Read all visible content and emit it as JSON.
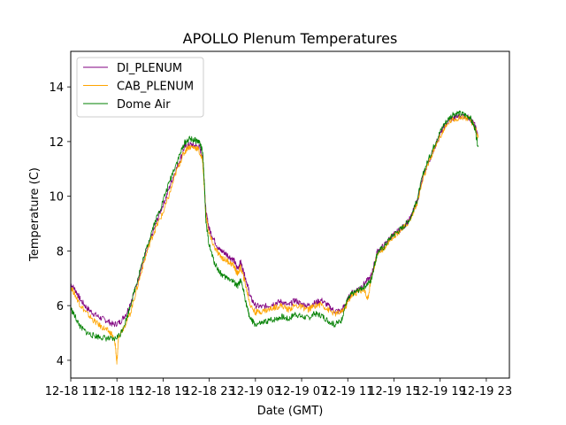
{
  "chart_data": {
    "type": "line",
    "title": "APOLLO Plenum Temperatures",
    "xlabel": "Date (GMT)",
    "ylabel": "Temperature (C)",
    "xlim": [
      10.0,
      23.3
    ],
    "ylim": [
      3.35,
      15.3
    ],
    "x_ticks": [
      {
        "value": 10.0,
        "label": "12-18 11"
      },
      {
        "value": 11.4,
        "label": "12-18 15"
      },
      {
        "value": 12.8,
        "label": "12-18 19"
      },
      {
        "value": 14.2,
        "label": "12-18 23"
      },
      {
        "value": 15.6,
        "label": "12-19 03"
      },
      {
        "value": 17.0,
        "label": "12-19 07"
      },
      {
        "value": 18.4,
        "label": "12-19 11"
      },
      {
        "value": 19.8,
        "label": "12-19 15"
      },
      {
        "value": 21.2,
        "label": "12-19 19"
      },
      {
        "value": 22.6,
        "label": "12-19 23"
      }
    ],
    "y_ticks": [
      4,
      6,
      8,
      10,
      12,
      14
    ],
    "legend_position": "upper-left",
    "series": [
      {
        "name": "DI_PLENUM",
        "color": "#800080",
        "points": [
          [
            10.0,
            6.8
          ],
          [
            10.15,
            6.55
          ],
          [
            10.3,
            6.2
          ],
          [
            10.5,
            5.9
          ],
          [
            10.7,
            5.7
          ],
          [
            10.9,
            5.55
          ],
          [
            11.1,
            5.45
          ],
          [
            11.3,
            5.3
          ],
          [
            11.5,
            5.4
          ],
          [
            11.7,
            5.75
          ],
          [
            11.9,
            6.4
          ],
          [
            12.1,
            7.2
          ],
          [
            12.3,
            8.0
          ],
          [
            12.5,
            8.7
          ],
          [
            12.7,
            9.4
          ],
          [
            12.9,
            10.0
          ],
          [
            13.1,
            10.7
          ],
          [
            13.3,
            11.3
          ],
          [
            13.45,
            11.8
          ],
          [
            13.6,
            11.9
          ],
          [
            13.75,
            11.85
          ],
          [
            13.9,
            11.8
          ],
          [
            14.0,
            11.4
          ],
          [
            14.05,
            10.5
          ],
          [
            14.1,
            9.4
          ],
          [
            14.2,
            8.8
          ],
          [
            14.35,
            8.4
          ],
          [
            14.5,
            8.05
          ],
          [
            14.65,
            7.95
          ],
          [
            14.8,
            7.8
          ],
          [
            14.95,
            7.65
          ],
          [
            15.05,
            7.35
          ],
          [
            15.15,
            7.6
          ],
          [
            15.25,
            7.2
          ],
          [
            15.35,
            6.8
          ],
          [
            15.45,
            6.3
          ],
          [
            15.6,
            6.0
          ],
          [
            15.8,
            5.95
          ],
          [
            16.0,
            6.0
          ],
          [
            16.2,
            6.1
          ],
          [
            16.4,
            6.15
          ],
          [
            16.6,
            6.0
          ],
          [
            16.8,
            6.2
          ],
          [
            17.0,
            6.05
          ],
          [
            17.2,
            6.0
          ],
          [
            17.4,
            6.1
          ],
          [
            17.6,
            6.2
          ],
          [
            17.8,
            6.0
          ],
          [
            18.0,
            5.8
          ],
          [
            18.2,
            5.8
          ],
          [
            18.35,
            6.1
          ],
          [
            18.5,
            6.45
          ],
          [
            18.7,
            6.6
          ],
          [
            18.9,
            6.8
          ],
          [
            19.1,
            7.05
          ],
          [
            19.2,
            7.5
          ],
          [
            19.3,
            8.0
          ],
          [
            19.5,
            8.2
          ],
          [
            19.7,
            8.5
          ],
          [
            19.9,
            8.7
          ],
          [
            20.1,
            8.9
          ],
          [
            20.3,
            9.2
          ],
          [
            20.5,
            9.8
          ],
          [
            20.7,
            10.8
          ],
          [
            20.9,
            11.4
          ],
          [
            21.1,
            12.0
          ],
          [
            21.3,
            12.5
          ],
          [
            21.5,
            12.8
          ],
          [
            21.7,
            12.9
          ],
          [
            21.9,
            12.95
          ],
          [
            22.1,
            12.85
          ],
          [
            22.25,
            12.6
          ],
          [
            22.35,
            12.2
          ]
        ]
      },
      {
        "name": "CAB_PLENUM",
        "color": "#ffa500",
        "points": [
          [
            10.0,
            6.7
          ],
          [
            10.15,
            6.35
          ],
          [
            10.3,
            6.0
          ],
          [
            10.5,
            5.7
          ],
          [
            10.7,
            5.45
          ],
          [
            10.9,
            5.25
          ],
          [
            11.1,
            5.1
          ],
          [
            11.25,
            4.95
          ],
          [
            11.35,
            4.6
          ],
          [
            11.4,
            3.85
          ],
          [
            11.45,
            4.9
          ],
          [
            11.6,
            5.2
          ],
          [
            11.8,
            5.7
          ],
          [
            12.0,
            6.6
          ],
          [
            12.2,
            7.5
          ],
          [
            12.4,
            8.3
          ],
          [
            12.6,
            8.9
          ],
          [
            12.8,
            9.4
          ],
          [
            13.0,
            10.1
          ],
          [
            13.2,
            10.9
          ],
          [
            13.4,
            11.5
          ],
          [
            13.55,
            11.8
          ],
          [
            13.7,
            11.8
          ],
          [
            13.85,
            11.75
          ],
          [
            14.0,
            11.3
          ],
          [
            14.05,
            10.3
          ],
          [
            14.1,
            9.3
          ],
          [
            14.2,
            8.6
          ],
          [
            14.35,
            8.15
          ],
          [
            14.5,
            7.85
          ],
          [
            14.65,
            7.7
          ],
          [
            14.8,
            7.6
          ],
          [
            14.95,
            7.45
          ],
          [
            15.05,
            7.15
          ],
          [
            15.15,
            7.4
          ],
          [
            15.25,
            7.0
          ],
          [
            15.35,
            6.5
          ],
          [
            15.45,
            6.0
          ],
          [
            15.6,
            5.75
          ],
          [
            15.8,
            5.8
          ],
          [
            16.0,
            5.85
          ],
          [
            16.2,
            5.95
          ],
          [
            16.4,
            6.0
          ],
          [
            16.6,
            5.85
          ],
          [
            16.8,
            6.0
          ],
          [
            17.0,
            5.95
          ],
          [
            17.2,
            5.85
          ],
          [
            17.4,
            6.0
          ],
          [
            17.6,
            6.05
          ],
          [
            17.8,
            5.85
          ],
          [
            18.0,
            5.7
          ],
          [
            18.2,
            5.75
          ],
          [
            18.35,
            6.0
          ],
          [
            18.5,
            6.35
          ],
          [
            18.7,
            6.5
          ],
          [
            18.9,
            6.6
          ],
          [
            19.0,
            6.2
          ],
          [
            19.1,
            6.95
          ],
          [
            19.2,
            7.4
          ],
          [
            19.3,
            7.9
          ],
          [
            19.5,
            8.1
          ],
          [
            19.7,
            8.45
          ],
          [
            19.9,
            8.65
          ],
          [
            20.1,
            8.85
          ],
          [
            20.3,
            9.15
          ],
          [
            20.5,
            9.75
          ],
          [
            20.7,
            10.7
          ],
          [
            20.9,
            11.35
          ],
          [
            21.1,
            11.95
          ],
          [
            21.3,
            12.4
          ],
          [
            21.5,
            12.75
          ],
          [
            21.7,
            12.85
          ],
          [
            21.9,
            12.9
          ],
          [
            22.1,
            12.8
          ],
          [
            22.25,
            12.55
          ],
          [
            22.35,
            12.15
          ]
        ]
      },
      {
        "name": "Dome Air",
        "color": "#008000",
        "points": [
          [
            10.0,
            5.9
          ],
          [
            10.15,
            5.55
          ],
          [
            10.3,
            5.2
          ],
          [
            10.5,
            5.0
          ],
          [
            10.7,
            4.9
          ],
          [
            10.9,
            4.85
          ],
          [
            11.1,
            4.8
          ],
          [
            11.3,
            4.75
          ],
          [
            11.5,
            4.95
          ],
          [
            11.7,
            5.55
          ],
          [
            11.9,
            6.4
          ],
          [
            12.1,
            7.3
          ],
          [
            12.3,
            8.1
          ],
          [
            12.5,
            8.9
          ],
          [
            12.7,
            9.5
          ],
          [
            12.9,
            10.2
          ],
          [
            13.1,
            10.9
          ],
          [
            13.3,
            11.5
          ],
          [
            13.45,
            11.95
          ],
          [
            13.6,
            12.1
          ],
          [
            13.75,
            12.05
          ],
          [
            13.9,
            12.0
          ],
          [
            14.0,
            11.6
          ],
          [
            14.05,
            10.5
          ],
          [
            14.1,
            9.0
          ],
          [
            14.2,
            8.2
          ],
          [
            14.35,
            7.6
          ],
          [
            14.5,
            7.25
          ],
          [
            14.65,
            7.05
          ],
          [
            14.8,
            7.0
          ],
          [
            14.95,
            6.85
          ],
          [
            15.05,
            6.7
          ],
          [
            15.15,
            6.9
          ],
          [
            15.25,
            6.5
          ],
          [
            15.35,
            5.9
          ],
          [
            15.45,
            5.5
          ],
          [
            15.6,
            5.3
          ],
          [
            15.8,
            5.35
          ],
          [
            16.0,
            5.45
          ],
          [
            16.2,
            5.5
          ],
          [
            16.4,
            5.6
          ],
          [
            16.6,
            5.5
          ],
          [
            16.8,
            5.7
          ],
          [
            17.0,
            5.6
          ],
          [
            17.2,
            5.55
          ],
          [
            17.4,
            5.7
          ],
          [
            17.6,
            5.65
          ],
          [
            17.8,
            5.45
          ],
          [
            18.0,
            5.3
          ],
          [
            18.2,
            5.45
          ],
          [
            18.35,
            6.1
          ],
          [
            18.5,
            6.4
          ],
          [
            18.7,
            6.55
          ],
          [
            18.9,
            6.7
          ],
          [
            19.1,
            6.9
          ],
          [
            19.2,
            7.45
          ],
          [
            19.3,
            7.95
          ],
          [
            19.5,
            8.15
          ],
          [
            19.7,
            8.5
          ],
          [
            19.9,
            8.7
          ],
          [
            20.1,
            8.9
          ],
          [
            20.3,
            9.2
          ],
          [
            20.5,
            9.85
          ],
          [
            20.7,
            10.9
          ],
          [
            20.9,
            11.5
          ],
          [
            21.1,
            12.1
          ],
          [
            21.3,
            12.6
          ],
          [
            21.5,
            12.9
          ],
          [
            21.7,
            13.05
          ],
          [
            21.9,
            13.0
          ],
          [
            22.1,
            12.9
          ],
          [
            22.25,
            12.5
          ],
          [
            22.35,
            11.8
          ]
        ]
      }
    ]
  }
}
